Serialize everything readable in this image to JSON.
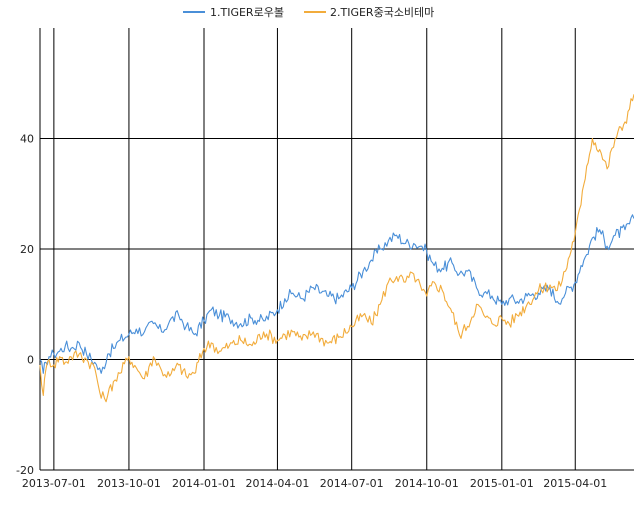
{
  "chart_data": {
    "type": "line",
    "title": "",
    "xlabel": "",
    "ylabel": "",
    "x_range": [
      "2013-06-14",
      "2015-06-12"
    ],
    "ylim": [
      -20,
      60
    ],
    "x_ticks": [
      "2013-07-01",
      "2013-10-01",
      "2014-01-01",
      "2014-04-01",
      "2014-07-01",
      "2014-10-01",
      "2015-01-01",
      "2015-04-01"
    ],
    "y_ticks": [
      "-20",
      "0",
      "20",
      "40"
    ],
    "grid": true,
    "legend_position": "top-center",
    "series": [
      {
        "name": "1.TIGER로우볼",
        "color": "#4a8fd8",
        "points": [
          [
            "2013-06-14",
            0
          ],
          [
            "2013-06-18",
            -2.5
          ],
          [
            "2013-06-21",
            -0.5
          ],
          [
            "2013-06-25",
            0.5
          ],
          [
            "2013-07-01",
            1.0
          ],
          [
            "2013-07-08",
            1.5
          ],
          [
            "2013-07-15",
            2.5
          ],
          [
            "2013-07-22",
            2.0
          ],
          [
            "2013-08-01",
            3.0
          ],
          [
            "2013-08-10",
            1.0
          ],
          [
            "2013-08-20",
            -0.5
          ],
          [
            "2013-08-28",
            -2.5
          ],
          [
            "2013-09-05",
            1.0
          ],
          [
            "2013-09-12",
            2.0
          ],
          [
            "2013-09-20",
            3.5
          ],
          [
            "2013-10-01",
            4.5
          ],
          [
            "2013-10-10",
            5.5
          ],
          [
            "2013-10-20",
            5.0
          ],
          [
            "2013-10-31",
            6.5
          ],
          [
            "2013-11-10",
            5.0
          ],
          [
            "2013-11-20",
            7.0
          ],
          [
            "2013-12-01",
            8.0
          ],
          [
            "2013-12-10",
            6.0
          ],
          [
            "2013-12-20",
            4.5
          ],
          [
            "2014-01-01",
            7.0
          ],
          [
            "2014-01-10",
            9.0
          ],
          [
            "2014-01-20",
            8.0
          ],
          [
            "2014-02-01",
            7.5
          ],
          [
            "2014-02-15",
            6.5
          ],
          [
            "2014-03-01",
            7.5
          ],
          [
            "2014-03-15",
            7.0
          ],
          [
            "2014-04-01",
            9.0
          ],
          [
            "2014-04-10",
            11.0
          ],
          [
            "2014-04-20",
            12.0
          ],
          [
            "2014-05-01",
            11.0
          ],
          [
            "2014-05-15",
            13.0
          ],
          [
            "2014-06-01",
            11.5
          ],
          [
            "2014-06-15",
            11.0
          ],
          [
            "2014-07-01",
            13.0
          ],
          [
            "2014-07-15",
            16.0
          ],
          [
            "2014-07-25",
            18.0
          ],
          [
            "2014-08-05",
            20.0
          ],
          [
            "2014-08-15",
            21.5
          ],
          [
            "2014-08-25",
            22.5
          ],
          [
            "2014-09-05",
            21.0
          ],
          [
            "2014-09-15",
            21.0
          ],
          [
            "2014-09-25",
            20.5
          ],
          [
            "2014-10-01",
            19.5
          ],
          [
            "2014-10-10",
            17.0
          ],
          [
            "2014-10-20",
            16.5
          ],
          [
            "2014-11-01",
            17.5
          ],
          [
            "2014-11-10",
            15.5
          ],
          [
            "2014-11-20",
            16.0
          ],
          [
            "2014-12-01",
            13.0
          ],
          [
            "2014-12-10",
            12.0
          ],
          [
            "2014-12-20",
            11.5
          ],
          [
            "2015-01-01",
            10.0
          ],
          [
            "2015-01-10",
            11.0
          ],
          [
            "2015-01-20",
            10.5
          ],
          [
            "2015-02-01",
            11.5
          ],
          [
            "2015-02-15",
            12.0
          ],
          [
            "2015-03-01",
            13.0
          ],
          [
            "2015-03-10",
            10.5
          ],
          [
            "2015-03-20",
            12.0
          ],
          [
            "2015-04-01",
            14.0
          ],
          [
            "2015-04-08",
            17.0
          ],
          [
            "2015-04-15",
            19.0
          ],
          [
            "2015-04-22",
            22.0
          ],
          [
            "2015-05-01",
            23.5
          ],
          [
            "2015-05-10",
            20.5
          ],
          [
            "2015-05-20",
            22.5
          ],
          [
            "2015-06-01",
            23.5
          ],
          [
            "2015-06-12",
            25.5
          ]
        ]
      },
      {
        "name": "2.TIGER중국소비테마",
        "color": "#f2ac3c",
        "points": [
          [
            "2013-06-14",
            -1.0
          ],
          [
            "2013-06-18",
            -6.5
          ],
          [
            "2013-06-21",
            -2.0
          ],
          [
            "2013-06-25",
            0.0
          ],
          [
            "2013-07-01",
            -1.0
          ],
          [
            "2013-07-08",
            0.5
          ],
          [
            "2013-07-15",
            -0.5
          ],
          [
            "2013-07-22",
            0.5
          ],
          [
            "2013-08-01",
            1.0
          ],
          [
            "2013-08-10",
            0.0
          ],
          [
            "2013-08-20",
            -1.5
          ],
          [
            "2013-08-28",
            -7.0
          ],
          [
            "2013-09-05",
            -6.5
          ],
          [
            "2013-09-12",
            -4.0
          ],
          [
            "2013-09-20",
            -2.5
          ],
          [
            "2013-10-01",
            0.5
          ],
          [
            "2013-10-10",
            -1.5
          ],
          [
            "2013-10-20",
            -3.5
          ],
          [
            "2013-10-31",
            0.5
          ],
          [
            "2013-11-10",
            -2.0
          ],
          [
            "2013-11-20",
            -3.0
          ],
          [
            "2013-12-01",
            -1.0
          ],
          [
            "2013-12-10",
            -3.0
          ],
          [
            "2013-12-20",
            -2.5
          ],
          [
            "2014-01-01",
            2.0
          ],
          [
            "2014-01-10",
            3.0
          ],
          [
            "2014-01-20",
            1.5
          ],
          [
            "2014-02-01",
            2.5
          ],
          [
            "2014-02-15",
            3.5
          ],
          [
            "2014-03-01",
            2.5
          ],
          [
            "2014-03-15",
            5.0
          ],
          [
            "2014-04-01",
            3.5
          ],
          [
            "2014-04-10",
            4.5
          ],
          [
            "2014-04-20",
            5.0
          ],
          [
            "2014-05-01",
            3.5
          ],
          [
            "2014-05-15",
            5.0
          ],
          [
            "2014-06-01",
            3.0
          ],
          [
            "2014-06-15",
            4.0
          ],
          [
            "2014-07-01",
            6.0
          ],
          [
            "2014-07-15",
            8.0
          ],
          [
            "2014-07-25",
            6.5
          ],
          [
            "2014-08-05",
            10.0
          ],
          [
            "2014-08-15",
            14.0
          ],
          [
            "2014-08-25",
            15.0
          ],
          [
            "2014-09-05",
            14.0
          ],
          [
            "2014-09-15",
            15.5
          ],
          [
            "2014-09-25",
            12.5
          ],
          [
            "2014-10-01",
            11.5
          ],
          [
            "2014-10-10",
            14.0
          ],
          [
            "2014-10-20",
            12.5
          ],
          [
            "2014-11-01",
            8.5
          ],
          [
            "2014-11-10",
            4.5
          ],
          [
            "2014-11-20",
            6.0
          ],
          [
            "2014-12-01",
            10.0
          ],
          [
            "2014-12-10",
            8.0
          ],
          [
            "2014-12-20",
            6.5
          ],
          [
            "2015-01-01",
            7.5
          ],
          [
            "2015-01-10",
            6.5
          ],
          [
            "2015-01-20",
            8.0
          ],
          [
            "2015-02-01",
            10.0
          ],
          [
            "2015-02-15",
            12.5
          ],
          [
            "2015-03-01",
            13.5
          ],
          [
            "2015-03-10",
            12.5
          ],
          [
            "2015-03-20",
            16.0
          ],
          [
            "2015-04-01",
            23.0
          ],
          [
            "2015-04-08",
            28.0
          ],
          [
            "2015-04-15",
            35.0
          ],
          [
            "2015-04-22",
            40.0
          ],
          [
            "2015-05-01",
            38.0
          ],
          [
            "2015-05-10",
            34.5
          ],
          [
            "2015-05-20",
            40.0
          ],
          [
            "2015-06-01",
            43.0
          ],
          [
            "2015-06-12",
            48.0
          ]
        ]
      }
    ]
  }
}
